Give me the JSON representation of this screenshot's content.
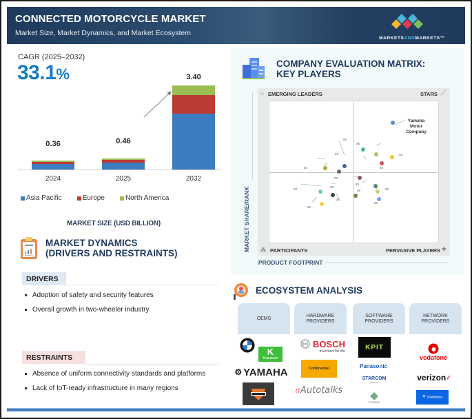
{
  "header": {
    "title": "CONNECTED MOTORCYCLE  MARKET",
    "subtitle": "Market Size, Market Dynamics, and Market Ecosystem",
    "logo": {
      "pre": "MARKETS",
      "and": "AND",
      "post": "MARKETS",
      "tm": "™",
      "colors": [
        "#f5b731",
        "#4fb6e0",
        "#e53a4e",
        "#4db6d8",
        "#7cc05a"
      ]
    }
  },
  "market_size": {
    "cagr_label": "CAGR (2025–2032)",
    "cagr_value": "33.1",
    "cagr_pct": "%",
    "footer_label": "MARKET SIZE (USD BILLION)"
  },
  "chart_data": {
    "type": "bar",
    "stacked": true,
    "title": "MARKET SIZE (USD BILLION)",
    "subtitle": "CAGR (2025–2032) 33.1%",
    "categories": [
      "2024",
      "2025",
      "2032"
    ],
    "totals": [
      0.36,
      0.46,
      3.4
    ],
    "total_labels": [
      "0.36",
      "0.46",
      "3.40"
    ],
    "series": [
      {
        "name": "Asia Pacific",
        "color": "#3c7cc0",
        "values": [
          0.22,
          0.28,
          2.25
        ]
      },
      {
        "name": "Europe",
        "color": "#bb3c33",
        "values": [
          0.08,
          0.1,
          0.75
        ]
      },
      {
        "name": "North America",
        "color": "#9cbc54",
        "values": [
          0.06,
          0.08,
          0.4
        ]
      }
    ],
    "xlabel": "",
    "ylabel": "USD Billion",
    "ylim": [
      0,
      3.6
    ],
    "legend_position": "bottom",
    "grid": false,
    "annotations": [
      "growth arrow from 2025 to 2032"
    ]
  },
  "market_dynamics": {
    "title_line1": "MARKET DYNAMICS",
    "title_line2": "(DRIVERS AND RESTRAINTS)",
    "drivers_label": "DRIVERS",
    "drivers": [
      "Adoption of safety and security features",
      "Overall growth in two-wheeler industry"
    ],
    "restraints_label": "RESTRAINTS",
    "restraints": [
      "Absence of uniform connectivity standards and platforms",
      "Lack of IoT-ready infrastructure in many regions"
    ]
  },
  "evaluation_matrix": {
    "title_line1": "COMPANY EVALUATION MATRIX:",
    "title_line2": "KEY PLAYERS",
    "quadrants": {
      "top_left": "EMERGING LEADERS",
      "top_right": "STARS",
      "bottom_left": "PARTICIPANTS",
      "bottom_right": "PERVASIVE PLAYERS"
    },
    "x_axis": "PRODUCT FOOTPRINT",
    "y_axis": "MARKET SHARE/RANK",
    "highlight_company_line1": "Yamaha Motor",
    "highlight_company_line2": "Company",
    "placeholder": "xx"
  },
  "ecosystem": {
    "title": "ECOSYSTEM ANALYSIS",
    "columns": [
      {
        "header": "OEMS",
        "logos": [
          "BMW",
          "Kawasaki",
          "YAMAHA",
          "Harley-Davidson"
        ]
      },
      {
        "header_line1": "HARDWARE",
        "header_line2": "PROVIDERS",
        "logos": [
          "BOSCH",
          "Invented for life",
          "Continental",
          "Autotalks"
        ]
      },
      {
        "header_line1": "SOFTWARE",
        "header_line2": "PROVIDERS",
        "logos": [
          "KPIT",
          "Panasonic",
          "STARCOM",
          "Systems",
          "P-NOVO"
        ]
      },
      {
        "header_line1": "NETWORK",
        "header_line2": "PROVIDERS",
        "logos": [
          "vodafone",
          "verizon",
          "Telefonica"
        ]
      }
    ]
  }
}
